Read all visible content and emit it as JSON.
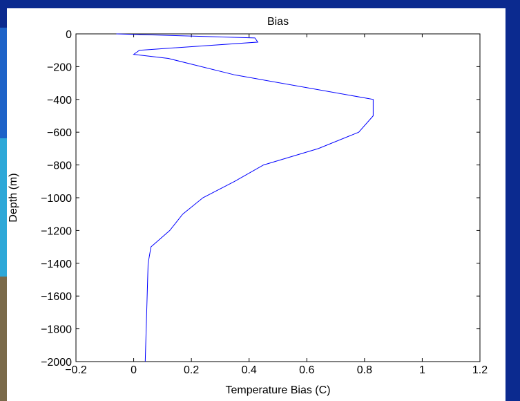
{
  "slide": {
    "background_color": "#0b2a8f",
    "accent_colors": [
      "#1e63c8",
      "#2ea8d8",
      "#7a6a4a"
    ]
  },
  "chart_data": {
    "type": "line",
    "title": "Bias",
    "xlabel": "Temperature Bias (C)",
    "ylabel": "Depth (m)",
    "xlim": [
      -0.2,
      1.2
    ],
    "ylim": [
      -2000,
      0
    ],
    "xticks": [
      -0.2,
      0,
      0.2,
      0.4,
      0.6,
      0.8,
      1,
      1.2
    ],
    "yticks": [
      0,
      -200,
      -400,
      -600,
      -800,
      -1000,
      -1200,
      -1400,
      -1600,
      -1800,
      -2000
    ],
    "xtick_labels": [
      "−0.2",
      "0",
      "0.2",
      "0.4",
      "0.6",
      "0.8",
      "1",
      "1.2"
    ],
    "ytick_labels": [
      "0",
      "−200",
      "−400",
      "−600",
      "−800",
      "−1000",
      "−1200",
      "−1400",
      "−1600",
      "−1800",
      "−2000"
    ],
    "grid": false,
    "line_color": "#0000ff",
    "series": [
      {
        "x": [
          -0.06,
          0.42,
          0.43,
          0.02,
          0.0,
          0.12,
          0.35,
          0.83,
          0.83,
          0.78,
          0.64,
          0.45,
          0.35,
          0.24,
          0.17,
          0.125,
          0.06,
          0.05,
          0.04
        ],
        "y": [
          0,
          -25,
          -50,
          -100,
          -125,
          -150,
          -250,
          -400,
          -500,
          -600,
          -700,
          -800,
          -900,
          -1000,
          -1100,
          -1200,
          -1300,
          -1400,
          -2000
        ]
      }
    ]
  }
}
